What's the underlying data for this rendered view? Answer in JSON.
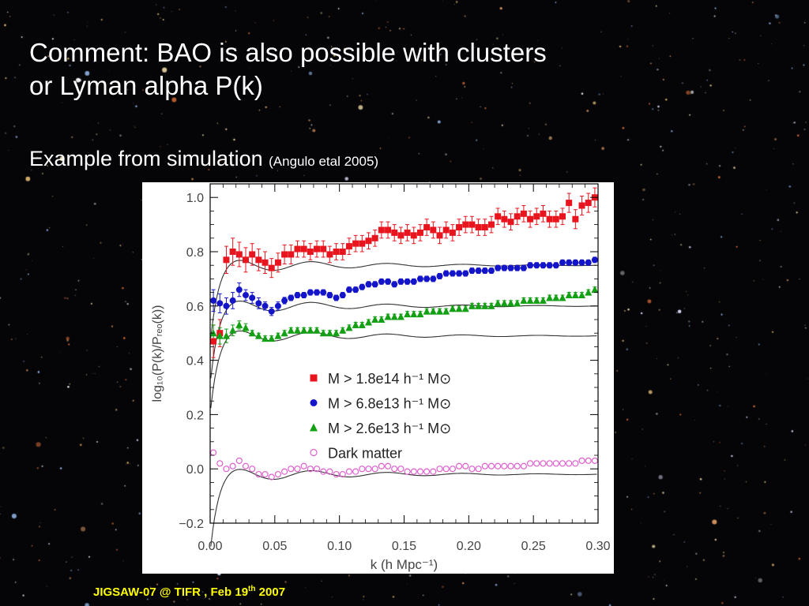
{
  "slide": {
    "title_line1": "Comment:  BAO is also possible with clusters",
    "title_line2": "or Lyman alpha P(k)",
    "subtitle": "Example from simulation",
    "citation": "(Angulo etal 2005)",
    "footer_main": "JIGSAW-07 @ TIFR , Feb 19",
    "footer_sup": "th",
    "footer_year": " 2007",
    "colors": {
      "background": "#050508",
      "text": "#ffffff",
      "footer": "#ffff00"
    }
  },
  "chart_data": {
    "type": "scatter",
    "xlabel": "k (h Mpc⁻¹)",
    "ylabel": "log₁₀(P(k)/Pᵣₑₒ(k))",
    "xlim": [
      0.0,
      0.3
    ],
    "ylim": [
      -0.2,
      1.05
    ],
    "xticks": [
      "0.00",
      "0.05",
      "0.10",
      "0.15",
      "0.20",
      "0.25",
      "0.30"
    ],
    "yticks": [
      "−0.2",
      "0.0",
      "0.2",
      "0.4",
      "0.6",
      "0.8",
      "1.0"
    ],
    "legend_position": "center-right",
    "series": [
      {
        "name": "M > 1.8e14 h⁻¹ M⊙",
        "marker": "square",
        "color": "#e8141e",
        "x": [
          0.0025,
          0.0075,
          0.0125,
          0.0175,
          0.0225,
          0.0275,
          0.0325,
          0.0375,
          0.0425,
          0.0475,
          0.0525,
          0.0575,
          0.0625,
          0.0675,
          0.0725,
          0.0775,
          0.0825,
          0.0875,
          0.0925,
          0.0975,
          0.1025,
          0.1075,
          0.1125,
          0.1175,
          0.1225,
          0.1275,
          0.1325,
          0.1375,
          0.1425,
          0.1475,
          0.1525,
          0.1575,
          0.1625,
          0.1675,
          0.1725,
          0.1775,
          0.1825,
          0.1875,
          0.1925,
          0.1975,
          0.2025,
          0.2075,
          0.2125,
          0.2175,
          0.2225,
          0.2275,
          0.2325,
          0.2375,
          0.2425,
          0.2475,
          0.2525,
          0.2575,
          0.2625,
          0.2675,
          0.2725,
          0.2775,
          0.2825,
          0.2875,
          0.2925,
          0.2975
        ],
        "y": [
          0.47,
          0.5,
          0.77,
          0.8,
          0.79,
          0.77,
          0.79,
          0.77,
          0.76,
          0.74,
          0.76,
          0.79,
          0.79,
          0.81,
          0.81,
          0.8,
          0.81,
          0.81,
          0.79,
          0.8,
          0.8,
          0.82,
          0.83,
          0.83,
          0.84,
          0.85,
          0.88,
          0.88,
          0.87,
          0.86,
          0.87,
          0.86,
          0.87,
          0.89,
          0.88,
          0.86,
          0.88,
          0.87,
          0.89,
          0.9,
          0.9,
          0.89,
          0.89,
          0.9,
          0.93,
          0.92,
          0.91,
          0.93,
          0.94,
          0.92,
          0.93,
          0.94,
          0.92,
          0.92,
          0.93,
          0.98,
          0.92,
          0.97,
          0.98,
          1.0
        ],
        "err": [
          0.06,
          0.05,
          0.05,
          0.05,
          0.045,
          0.045,
          0.04,
          0.04,
          0.04,
          0.035,
          0.035,
          0.035,
          0.035,
          0.03,
          0.03,
          0.03,
          0.03,
          0.03,
          0.03,
          0.03,
          0.03,
          0.03,
          0.03,
          0.03,
          0.03,
          0.03,
          0.03,
          0.03,
          0.03,
          0.03,
          0.03,
          0.03,
          0.03,
          0.03,
          0.03,
          0.03,
          0.03,
          0.03,
          0.03,
          0.03,
          0.03,
          0.03,
          0.03,
          0.03,
          0.03,
          0.03,
          0.03,
          0.03,
          0.03,
          0.03,
          0.03,
          0.03,
          0.03,
          0.03,
          0.03,
          0.035,
          0.035,
          0.035,
          0.035,
          0.035
        ]
      },
      {
        "name": "M > 6.8e13 h⁻¹ M⊙",
        "marker": "circle",
        "color": "#1414c8",
        "x": [
          0.0025,
          0.0075,
          0.0125,
          0.0175,
          0.0225,
          0.0275,
          0.0325,
          0.0375,
          0.0425,
          0.0475,
          0.0525,
          0.0575,
          0.0625,
          0.0675,
          0.0725,
          0.0775,
          0.0825,
          0.0875,
          0.0925,
          0.0975,
          0.1025,
          0.1075,
          0.1125,
          0.1175,
          0.1225,
          0.1275,
          0.1325,
          0.1375,
          0.1425,
          0.1475,
          0.1525,
          0.1575,
          0.1625,
          0.1675,
          0.1725,
          0.1775,
          0.1825,
          0.1875,
          0.1925,
          0.1975,
          0.2025,
          0.2075,
          0.2125,
          0.2175,
          0.2225,
          0.2275,
          0.2325,
          0.2375,
          0.2425,
          0.2475,
          0.2525,
          0.2575,
          0.2625,
          0.2675,
          0.2725,
          0.2775,
          0.2825,
          0.2875,
          0.2925,
          0.2975
        ],
        "y": [
          0.62,
          0.61,
          0.6,
          0.62,
          0.66,
          0.64,
          0.63,
          0.61,
          0.6,
          0.58,
          0.6,
          0.62,
          0.63,
          0.64,
          0.64,
          0.65,
          0.65,
          0.65,
          0.64,
          0.63,
          0.64,
          0.66,
          0.66,
          0.67,
          0.68,
          0.68,
          0.69,
          0.69,
          0.68,
          0.69,
          0.69,
          0.69,
          0.7,
          0.7,
          0.7,
          0.71,
          0.72,
          0.72,
          0.72,
          0.72,
          0.73,
          0.73,
          0.73,
          0.73,
          0.74,
          0.74,
          0.74,
          0.74,
          0.74,
          0.75,
          0.75,
          0.75,
          0.75,
          0.75,
          0.76,
          0.76,
          0.76,
          0.76,
          0.76,
          0.77
        ],
        "err": [
          0.04,
          0.035,
          0.03,
          0.03,
          0.025,
          0.02,
          0.02,
          0.02,
          0.015,
          0.015,
          0.015,
          0.012,
          0.01,
          0.01,
          0.01,
          0.01,
          0.01,
          0.01,
          0.01,
          0.01,
          0.01,
          0.01,
          0.01,
          0.01,
          0.01,
          0.01,
          0.01,
          0.01,
          0.01,
          0.01,
          0.01,
          0.01,
          0.01,
          0.01,
          0.01,
          0.01,
          0.01,
          0.01,
          0.01,
          0.01,
          0.01,
          0.01,
          0.01,
          0.01,
          0.01,
          0.01,
          0.01,
          0.01,
          0.01,
          0.01,
          0.01,
          0.01,
          0.01,
          0.01,
          0.01,
          0.01,
          0.01,
          0.01,
          0.01,
          0.01
        ]
      },
      {
        "name": "M > 2.6e13 h⁻¹ M⊙",
        "marker": "triangle",
        "color": "#14a014",
        "x": [
          0.0025,
          0.0075,
          0.0125,
          0.0175,
          0.0225,
          0.0275,
          0.0325,
          0.0375,
          0.0425,
          0.0475,
          0.0525,
          0.0575,
          0.0625,
          0.0675,
          0.0725,
          0.0775,
          0.0825,
          0.0875,
          0.0925,
          0.0975,
          0.1025,
          0.1075,
          0.1125,
          0.1175,
          0.1225,
          0.1275,
          0.1325,
          0.1375,
          0.1425,
          0.1475,
          0.1525,
          0.1575,
          0.1625,
          0.1675,
          0.1725,
          0.1775,
          0.1825,
          0.1875,
          0.1925,
          0.1975,
          0.2025,
          0.2075,
          0.2125,
          0.2175,
          0.2225,
          0.2275,
          0.2325,
          0.2375,
          0.2425,
          0.2475,
          0.2525,
          0.2575,
          0.2625,
          0.2675,
          0.2725,
          0.2775,
          0.2825,
          0.2875,
          0.2925,
          0.2975
        ],
        "y": [
          0.5,
          0.49,
          0.49,
          0.51,
          0.53,
          0.52,
          0.5,
          0.49,
          0.48,
          0.48,
          0.49,
          0.5,
          0.51,
          0.51,
          0.51,
          0.51,
          0.51,
          0.5,
          0.5,
          0.5,
          0.51,
          0.52,
          0.53,
          0.53,
          0.54,
          0.55,
          0.55,
          0.56,
          0.56,
          0.56,
          0.57,
          0.57,
          0.57,
          0.58,
          0.58,
          0.58,
          0.58,
          0.59,
          0.59,
          0.59,
          0.6,
          0.6,
          0.6,
          0.6,
          0.61,
          0.61,
          0.61,
          0.61,
          0.62,
          0.62,
          0.62,
          0.62,
          0.63,
          0.63,
          0.63,
          0.64,
          0.64,
          0.64,
          0.65,
          0.66
        ],
        "err": [
          0.03,
          0.03,
          0.025,
          0.02,
          0.015,
          0.015,
          0.01,
          0.01,
          0.01,
          0.01,
          0.01,
          0.01,
          0.01,
          0.01,
          0.01,
          0.01,
          0.01,
          0.01,
          0.01,
          0.01,
          0.01,
          0.01,
          0.01,
          0.01,
          0.01,
          0.01,
          0.01,
          0.01,
          0.01,
          0.01,
          0.01,
          0.01,
          0.01,
          0.01,
          0.01,
          0.01,
          0.01,
          0.01,
          0.01,
          0.01,
          0.01,
          0.01,
          0.01,
          0.01,
          0.01,
          0.01,
          0.01,
          0.01,
          0.01,
          0.01,
          0.01,
          0.01,
          0.01,
          0.01,
          0.01,
          0.01,
          0.01,
          0.01,
          0.01,
          0.01
        ]
      },
      {
        "name": "Dark matter",
        "marker": "open-circle",
        "color": "#e060d0",
        "x": [
          0.0025,
          0.0075,
          0.0125,
          0.0175,
          0.0225,
          0.0275,
          0.0325,
          0.0375,
          0.0425,
          0.0475,
          0.0525,
          0.0575,
          0.0625,
          0.0675,
          0.0725,
          0.0775,
          0.0825,
          0.0875,
          0.0925,
          0.0975,
          0.1025,
          0.1075,
          0.1125,
          0.1175,
          0.1225,
          0.1275,
          0.1325,
          0.1375,
          0.1425,
          0.1475,
          0.1525,
          0.1575,
          0.1625,
          0.1675,
          0.1725,
          0.1775,
          0.1825,
          0.1875,
          0.1925,
          0.1975,
          0.2025,
          0.2075,
          0.2125,
          0.2175,
          0.2225,
          0.2275,
          0.2325,
          0.2375,
          0.2425,
          0.2475,
          0.2525,
          0.2575,
          0.2625,
          0.2675,
          0.2725,
          0.2775,
          0.2825,
          0.2875,
          0.2925,
          0.2975
        ],
        "y": [
          0.06,
          0.02,
          0.0,
          0.01,
          0.03,
          0.01,
          0.0,
          -0.02,
          -0.02,
          -0.03,
          -0.02,
          -0.01,
          0.0,
          0.0,
          0.01,
          0.0,
          0.0,
          -0.01,
          -0.01,
          -0.02,
          -0.02,
          -0.01,
          -0.01,
          0.0,
          0.0,
          0.0,
          0.01,
          0.01,
          0.0,
          0.0,
          -0.01,
          -0.01,
          -0.01,
          -0.01,
          -0.01,
          0.0,
          0.0,
          0.0,
          0.01,
          0.01,
          0.0,
          0.0,
          0.01,
          0.01,
          0.01,
          0.01,
          0.01,
          0.01,
          0.01,
          0.02,
          0.02,
          0.02,
          0.02,
          0.02,
          0.02,
          0.02,
          0.02,
          0.03,
          0.03,
          0.03
        ],
        "err": []
      }
    ]
  }
}
